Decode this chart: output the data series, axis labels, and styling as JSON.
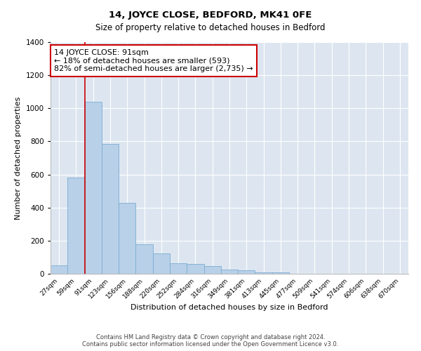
{
  "title": "14, JOYCE CLOSE, BEDFORD, MK41 0FE",
  "subtitle": "Size of property relative to detached houses in Bedford",
  "xlabel": "Distribution of detached houses by size in Bedford",
  "ylabel": "Number of detached properties",
  "bar_color": "#b8d0e8",
  "bar_edge_color": "#7aadd4",
  "bg_color": "#dde6f0",
  "grid_color": "#ffffff",
  "marker_line_color": "#cc0000",
  "annotation_text": "14 JOYCE CLOSE: 91sqm\n← 18% of detached houses are smaller (593)\n82% of semi-detached houses are larger (2,735) →",
  "annotation_box_color": "#ffffff",
  "annotation_box_edge": "#cc0000",
  "categories": [
    "27sqm",
    "59sqm",
    "91sqm",
    "123sqm",
    "156sqm",
    "188sqm",
    "220sqm",
    "252sqm",
    "284sqm",
    "316sqm",
    "349sqm",
    "381sqm",
    "413sqm",
    "445sqm",
    "477sqm",
    "509sqm",
    "541sqm",
    "574sqm",
    "606sqm",
    "638sqm",
    "670sqm"
  ],
  "values": [
    50,
    580,
    1040,
    785,
    430,
    178,
    125,
    65,
    60,
    48,
    25,
    22,
    10,
    8,
    0,
    0,
    0,
    0,
    0,
    0,
    0
  ],
  "ylim": [
    0,
    1400
  ],
  "yticks": [
    0,
    200,
    400,
    600,
    800,
    1000,
    1200,
    1400
  ],
  "footnote1": "Contains HM Land Registry data © Crown copyright and database right 2024.",
  "footnote2": "Contains public sector information licensed under the Open Government Licence v3.0."
}
